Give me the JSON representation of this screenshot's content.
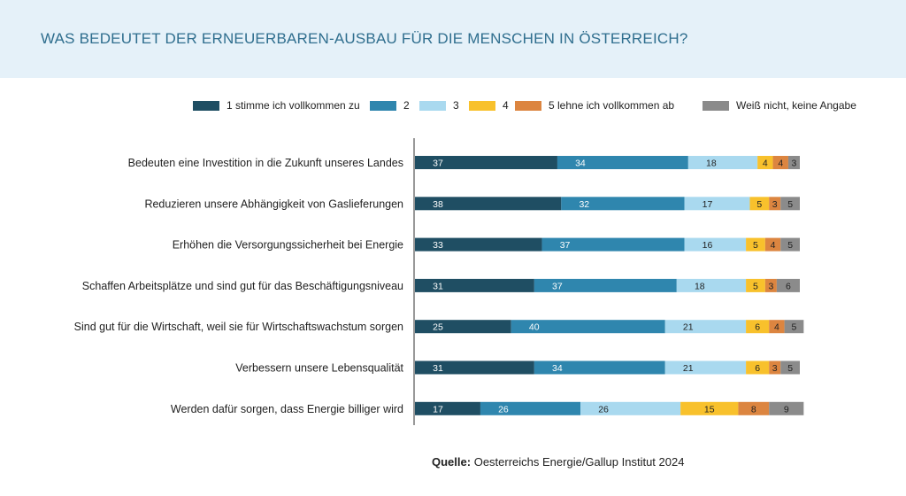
{
  "title": "WAS BEDEUTET DER ERNEUERBAREN-AUSBAU FÜR DIE MENSCHEN IN ÖSTERREICH?",
  "source": {
    "label": "Quelle:",
    "text": "Oesterreichs Energie/Gallup Institut 2024"
  },
  "colors": {
    "header_background": "#e5f1f9",
    "title": "#2f6e8e"
  },
  "chart_data": {
    "type": "bar",
    "orientation": "horizontal",
    "stacked": true,
    "unit": "%",
    "xlim": [
      0,
      100
    ],
    "grid": false,
    "legend_position": "top",
    "categories": [
      "Bedeuten eine Investition in die Zukunft unseres Landes",
      "Reduzieren unsere Abhängigkeit von Gaslieferungen",
      "Erhöhen die Versorgungssicherheit bei Energie",
      "Schaffen Arbeitsplätze und sind gut für das Beschäftigungsniveau",
      "Sind gut für die Wirtschaft, weil sie für Wirtschaftswachstum sorgen",
      "Verbessern unsere Lebensqualität",
      "Werden dafür sorgen, dass Energie billiger wird"
    ],
    "series": [
      {
        "name": "1 stimme ich vollkommen zu",
        "color": "#1f4e63",
        "label_color": "#ffffff",
        "values": [
          37,
          38,
          33,
          31,
          25,
          31,
          17
        ]
      },
      {
        "name": "2",
        "color": "#2f86ae",
        "label_color": "#ffffff",
        "values": [
          34,
          32,
          37,
          37,
          40,
          34,
          26
        ]
      },
      {
        "name": "3",
        "color": "#a9d9ef",
        "label_color": "#222222",
        "values": [
          18,
          17,
          16,
          18,
          21,
          21,
          26
        ]
      },
      {
        "name": "4",
        "color": "#f8c12c",
        "label_color": "#222222",
        "values": [
          4,
          5,
          5,
          5,
          6,
          6,
          15
        ]
      },
      {
        "name": "5 lehne ich vollkommen ab",
        "color": "#dc8540",
        "label_color": "#222222",
        "values": [
          4,
          3,
          4,
          3,
          4,
          3,
          8
        ]
      },
      {
        "name": "Weiß nicht, keine Angabe",
        "color": "#8b8b8b",
        "label_color": "#222222",
        "values": [
          3,
          5,
          5,
          6,
          5,
          5,
          9
        ]
      }
    ]
  }
}
